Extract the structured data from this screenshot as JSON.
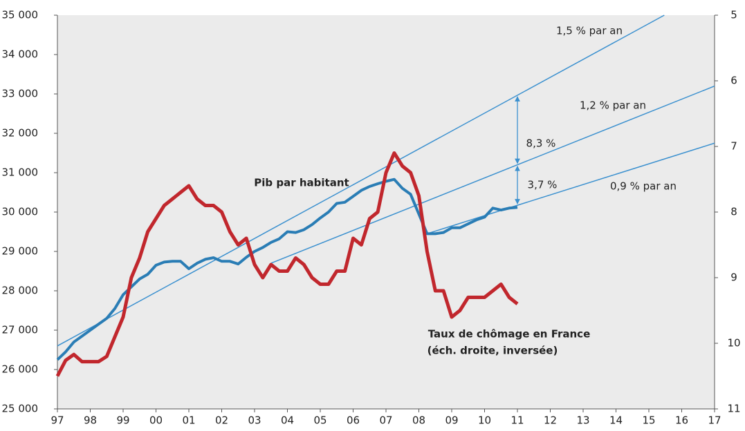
{
  "chart_data": {
    "type": "line",
    "xlim": [
      1997,
      2017
    ],
    "xticks": [
      {
        "value": 1997,
        "label": "97"
      },
      {
        "value": 1998,
        "label": "98"
      },
      {
        "value": 1999,
        "label": "99"
      },
      {
        "value": 2000,
        "label": "00"
      },
      {
        "value": 2001,
        "label": "01"
      },
      {
        "value": 2002,
        "label": "02"
      },
      {
        "value": 2003,
        "label": "03"
      },
      {
        "value": 2004,
        "label": "04"
      },
      {
        "value": 2005,
        "label": "05"
      },
      {
        "value": 2006,
        "label": "06"
      },
      {
        "value": 2007,
        "label": "07"
      },
      {
        "value": 2008,
        "label": "08"
      },
      {
        "value": 2009,
        "label": "09"
      },
      {
        "value": 2010,
        "label": "10"
      },
      {
        "value": 2011,
        "label": "11"
      },
      {
        "value": 2012,
        "label": "12"
      },
      {
        "value": 2013,
        "label": "13"
      },
      {
        "value": 2014,
        "label": "14"
      },
      {
        "value": 2015,
        "label": "15"
      },
      {
        "value": 2016,
        "label": "16"
      },
      {
        "value": 2017,
        "label": "17"
      }
    ],
    "ylim": [
      25000,
      35000
    ],
    "yticks": [
      {
        "value": 25000,
        "label": "25 000"
      },
      {
        "value": 26000,
        "label": "26 000"
      },
      {
        "value": 27000,
        "label": "27 000"
      },
      {
        "value": 28000,
        "label": "28 000"
      },
      {
        "value": 29000,
        "label": "29 000"
      },
      {
        "value": 30000,
        "label": "30 000"
      },
      {
        "value": 31000,
        "label": "31 000"
      },
      {
        "value": 32000,
        "label": "32 000"
      },
      {
        "value": 33000,
        "label": "33 000"
      },
      {
        "value": 34000,
        "label": "34 000"
      },
      {
        "value": 35000,
        "label": "35 000"
      }
    ],
    "y2lim": [
      5,
      11
    ],
    "y2ticks": [
      5,
      6,
      7,
      8,
      9,
      10,
      11
    ],
    "y2_inverted": true,
    "background": "#ebebeb",
    "x": [
      1997,
      1997.25,
      1997.5,
      1997.75,
      1998,
      1998.25,
      1998.5,
      1998.75,
      1999,
      1999.25,
      1999.5,
      1999.75,
      2000,
      2000.25,
      2000.5,
      2000.75,
      2001,
      2001.25,
      2001.5,
      2001.75,
      2002,
      2002.25,
      2002.5,
      2002.75,
      2003,
      2003.25,
      2003.5,
      2003.75,
      2004,
      2004.25,
      2004.5,
      2004.75,
      2005,
      2005.25,
      2005.5,
      2005.75,
      2006,
      2006.25,
      2006.5,
      2006.75,
      2007,
      2007.25,
      2007.5,
      2007.75,
      2008,
      2008.25,
      2008.5,
      2008.75,
      2009,
      2009.25,
      2009.5,
      2009.75,
      2010,
      2010.25,
      2010.5,
      2010.75,
      2011
    ],
    "series": [
      {
        "name": "Pib par habitant",
        "color": "#2a7db5",
        "values": [
          26250,
          26450,
          26700,
          26850,
          27000,
          27150,
          27300,
          27550,
          27900,
          28100,
          28300,
          28420,
          28650,
          28730,
          28750,
          28750,
          28560,
          28700,
          28800,
          28840,
          28750,
          28750,
          28680,
          28850,
          29000,
          29100,
          29230,
          29320,
          29500,
          29480,
          29550,
          29680,
          29850,
          30000,
          30220,
          30250,
          30400,
          30550,
          30650,
          30720,
          30780,
          30830,
          30600,
          30450,
          29950,
          29450,
          29450,
          29480,
          29600,
          29600,
          29700,
          29800,
          29870,
          30100,
          30050,
          30100,
          30120
        ]
      },
      {
        "name": "Taux de chômage en France",
        "color": "#c1272d",
        "axis": "y2",
        "values": [
          10.5,
          10.26,
          10.17,
          10.28,
          10.28,
          10.28,
          10.2,
          9.9,
          9.6,
          9.0,
          8.7,
          8.3,
          8.1,
          7.9,
          7.8,
          7.7,
          7.6,
          7.8,
          7.9,
          7.9,
          8.0,
          8.3,
          8.5,
          8.4,
          8.8,
          9.0,
          8.8,
          8.9,
          8.9,
          8.7,
          8.8,
          9.0,
          9.1,
          9.1,
          8.9,
          8.9,
          8.4,
          8.5,
          8.1,
          8.0,
          7.4,
          7.1,
          7.3,
          7.4,
          7.75,
          8.6,
          9.2,
          9.2,
          9.6,
          9.5,
          9.3,
          9.3,
          9.3,
          9.2,
          9.1,
          9.3,
          9.4
        ]
      }
    ],
    "series_note": "(éch. droite, inversée)",
    "trend_lines": [
      {
        "name": "1,5 % par an",
        "color": "#3a90cf",
        "x": [
          1997,
          2015.47
        ],
        "values": [
          26600,
          35000
        ]
      },
      {
        "name": "1,2 % par an",
        "color": "#3a90cf",
        "x": [
          2003.5,
          2017
        ],
        "values": [
          28700,
          33200
        ]
      },
      {
        "name": "0,9 % par an",
        "color": "#3a90cf",
        "x": [
          2008.25,
          2017
        ],
        "values": [
          29450,
          31750
        ]
      }
    ],
    "annotations": [
      "8,3 %",
      "3,7 %"
    ]
  }
}
